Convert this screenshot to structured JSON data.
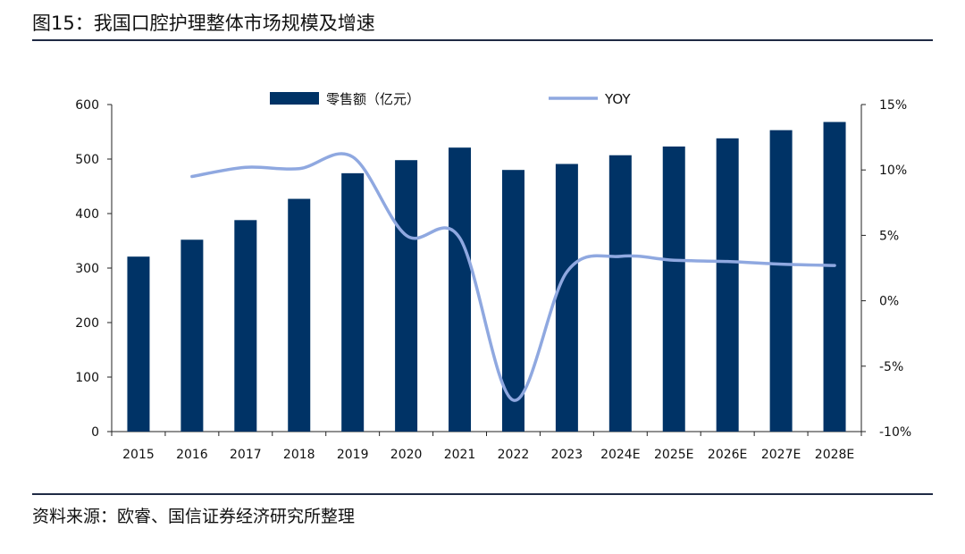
{
  "figure": {
    "title": "图15：我国口腔护理整体市场规模及增速",
    "source": "资料来源：欧睿、国信证券经济研究所整理"
  },
  "chart_data": {
    "type": "bar",
    "categories": [
      "2015",
      "2016",
      "2017",
      "2018",
      "2019",
      "2020",
      "2021",
      "2022",
      "2023",
      "2024E",
      "2025E",
      "2026E",
      "2027E",
      "2028E"
    ],
    "series": [
      {
        "name": "零售额（亿元）",
        "type": "bar",
        "axis": "left",
        "color": "#003366",
        "values": [
          321,
          352,
          388,
          427,
          474,
          498,
          521,
          480,
          491,
          507,
          523,
          538,
          553,
          568
        ]
      },
      {
        "name": "YOY",
        "type": "line",
        "axis": "right",
        "color": "#8fa8e0",
        "values": [
          null,
          9.5,
          10.2,
          10.1,
          11.0,
          5.0,
          4.8,
          -7.6,
          2.2,
          3.4,
          3.1,
          3.0,
          2.8,
          2.7
        ]
      }
    ],
    "y_left": {
      "ticks": [
        0,
        100,
        200,
        300,
        400,
        500,
        600
      ],
      "ylim": [
        0,
        600
      ]
    },
    "y_right": {
      "ticks": [
        15,
        10,
        5,
        0,
        -5,
        -10
      ],
      "tick_labels": [
        "15%",
        "10%",
        "5%",
        "0%",
        "-5%",
        "-10%"
      ],
      "ylim": [
        -10,
        15
      ]
    },
    "legend": "top-center",
    "grid": false
  }
}
